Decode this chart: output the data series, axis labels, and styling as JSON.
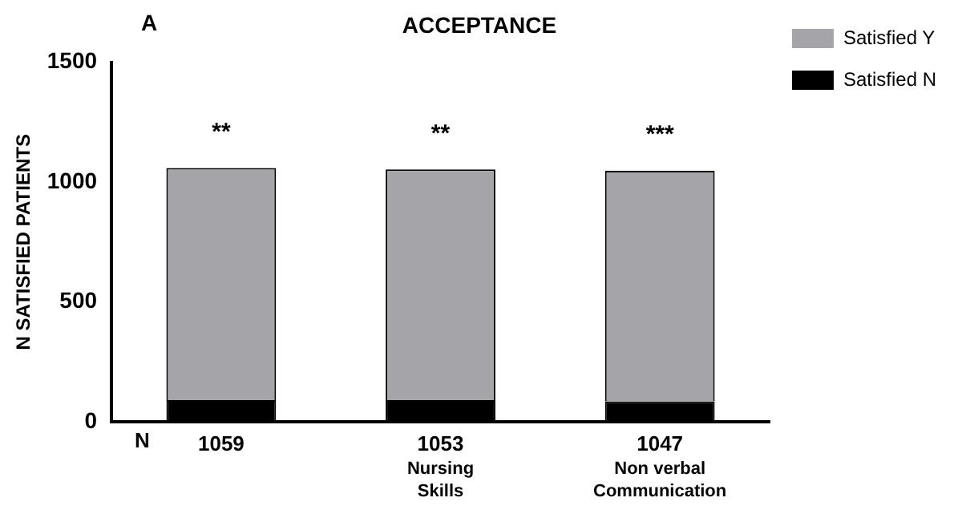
{
  "chart_data": {
    "type": "bar",
    "stacked": true,
    "title": "ACCEPTANCE",
    "ylabel": "N SATISFIED PATIENTS",
    "categories": [
      null,
      "Nursing Skills",
      "Non verbal Communication"
    ],
    "series": [
      {
        "name": "Satisfied N",
        "color": "#000000",
        "values": [
          90,
          90,
          85
        ]
      },
      {
        "name": "Satisfied Y",
        "color": "#a5a5a9",
        "values": [
          969,
          963,
          962
        ]
      }
    ],
    "totals": [
      "1059",
      "1053",
      "1047"
    ],
    "annotations": [
      "A",
      "N",
      "**",
      "**",
      "***"
    ],
    "ylim": [
      0,
      1500
    ],
    "yticks": [
      0,
      500,
      1000,
      1500
    ],
    "grid": false,
    "legend": "top right"
  }
}
